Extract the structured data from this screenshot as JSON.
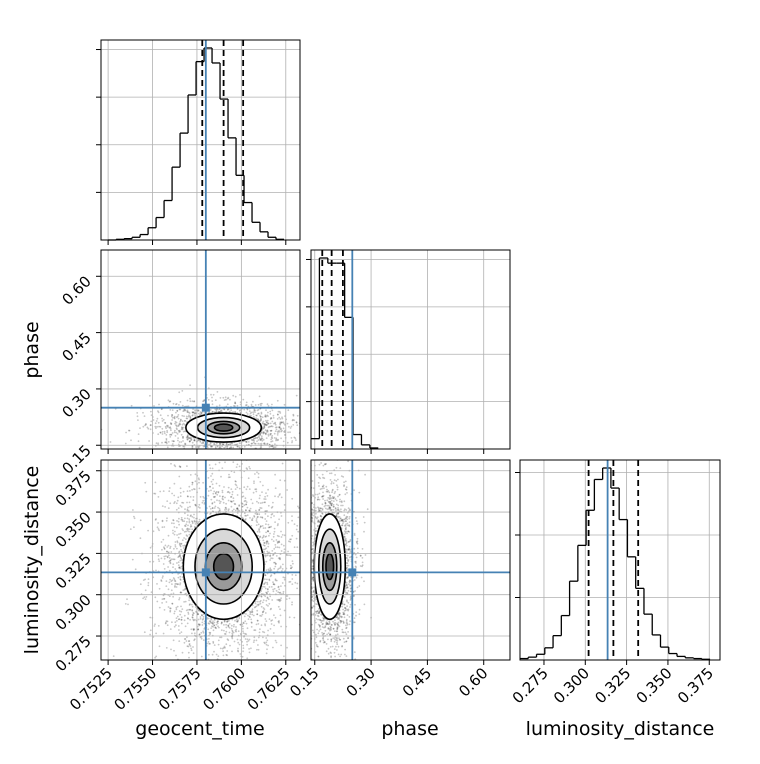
{
  "chart_data": {
    "type": "corner",
    "parameters": [
      "geocent_time",
      "phase",
      "luminosity_distance"
    ],
    "axis_labels": {
      "x": [
        "geocent_time",
        "phase",
        "luminosity_distance"
      ],
      "y": [
        "phase",
        "luminosity_distance"
      ]
    },
    "ranges": {
      "geocent_time": [
        0.7521,
        0.7633
      ],
      "phase": [
        0.14,
        0.67
      ],
      "luminosity_distance": [
        0.2605,
        0.3815
      ]
    },
    "ticks": {
      "geocent_time": {
        "values": [
          0.7525,
          0.755,
          0.7575,
          0.76,
          0.7625
        ],
        "labels": [
          "0.7525",
          "0.7550",
          "0.7575",
          "0.7600",
          "0.7625"
        ]
      },
      "phase": {
        "values": [
          0.15,
          0.3,
          0.45,
          0.6
        ],
        "labels": [
          "0.15",
          "0.30",
          "0.45",
          "0.60"
        ]
      },
      "luminosity_distance": {
        "values": [
          0.275,
          0.3,
          0.325,
          0.35,
          0.375
        ],
        "labels": [
          "0.275",
          "0.300",
          "0.325",
          "0.350",
          "0.375"
        ]
      }
    },
    "truth_color": "#4682b4",
    "truths": {
      "geocent_time": 0.758,
      "phase": 0.25,
      "luminosity_distance": 0.3135
    },
    "quantiles": {
      "geocent_time": [
        0.7578,
        0.759,
        0.7601
      ],
      "phase": [
        0.17,
        0.195,
        0.225
      ],
      "luminosity_distance": [
        0.302,
        0.317,
        0.332
      ]
    },
    "histograms": {
      "geocent_time": {
        "bin_edges": [
          0.7525,
          0.75295,
          0.7534,
          0.75385,
          0.7543,
          0.75475,
          0.7552,
          0.75565,
          0.7561,
          0.75655,
          0.757,
          0.75745,
          0.7579,
          0.75835,
          0.7588,
          0.75925,
          0.7597,
          0.76015,
          0.7606,
          0.76105,
          0.7615,
          0.76195,
          0.7624
        ],
        "counts": [
          0,
          1,
          2,
          4,
          8,
          18,
          33,
          58,
          107,
          157,
          213,
          262,
          282,
          260,
          207,
          150,
          95,
          55,
          26,
          12,
          4,
          1
        ]
      },
      "phase": {
        "bin_edges": [
          0.14,
          0.1624,
          0.1848,
          0.2072,
          0.2296,
          0.252,
          0.2744,
          0.2968,
          0.3192
        ],
        "counts": [
          20,
          370,
          360,
          360,
          255,
          28,
          8,
          2
        ]
      },
      "luminosity_distance": {
        "bin_edges": [
          0.2605,
          0.2655,
          0.2705,
          0.2755,
          0.2805,
          0.2855,
          0.2905,
          0.2955,
          0.3005,
          0.3055,
          0.3105,
          0.3155,
          0.3205,
          0.3255,
          0.3305,
          0.3355,
          0.3405,
          0.3455,
          0.3505,
          0.3555,
          0.3605,
          0.3655,
          0.3705,
          0.3755
        ],
        "counts": [
          2,
          4,
          8,
          17,
          34,
          62,
          110,
          160,
          209,
          252,
          268,
          240,
          196,
          144,
          100,
          64,
          35,
          18,
          9,
          5,
          3,
          2,
          1
        ]
      }
    },
    "pair_centers": {
      "geocent_time|phase": {
        "x": 0.759,
        "y": 0.197
      },
      "geocent_time|luminosity_distance": {
        "x": 0.759,
        "y": 0.317
      },
      "phase|luminosity_distance": {
        "x": 0.19,
        "y": 0.317
      }
    },
    "grid": true
  }
}
